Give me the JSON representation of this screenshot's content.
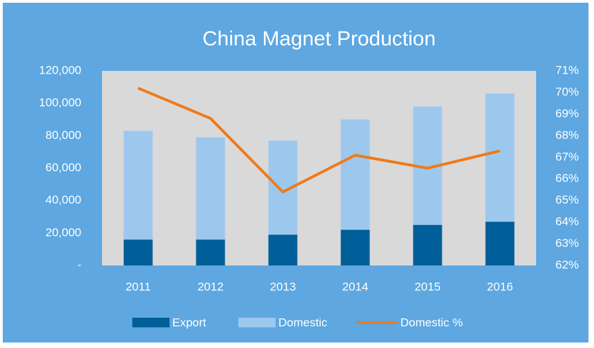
{
  "chart_data": {
    "type": "bar",
    "stacked": true,
    "title": "China Magnet Production",
    "categories": [
      "2011",
      "2012",
      "2013",
      "2014",
      "2015",
      "2016"
    ],
    "series": [
      {
        "name": "Export",
        "color": "#005e98",
        "values": [
          16000,
          16000,
          19000,
          22000,
          25000,
          27000
        ]
      },
      {
        "name": "Domestic",
        "color": "#9dc8ee",
        "values": [
          67000,
          63000,
          58000,
          68000,
          73000,
          79000
        ]
      },
      {
        "name": "Domestic %",
        "type": "line",
        "axis": "y2",
        "color": "#ee7a1a",
        "values": [
          70.2,
          68.8,
          65.4,
          67.1,
          66.5,
          67.3
        ]
      }
    ],
    "ylim": [
      0,
      120000
    ],
    "yticks": [
      {
        "value": 0,
        "label": "-"
      },
      {
        "value": 20000,
        "label": "20,000"
      },
      {
        "value": 40000,
        "label": "40,000"
      },
      {
        "value": 60000,
        "label": "60,000"
      },
      {
        "value": 80000,
        "label": "80,000"
      },
      {
        "value": 100000,
        "label": "100,000"
      },
      {
        "value": 120000,
        "label": "120,000"
      }
    ],
    "y2lim": [
      62,
      71
    ],
    "y2ticks": [
      {
        "value": 62,
        "label": "62%"
      },
      {
        "value": 63,
        "label": "63%"
      },
      {
        "value": 64,
        "label": "64%"
      },
      {
        "value": 65,
        "label": "65%"
      },
      {
        "value": 66,
        "label": "66%"
      },
      {
        "value": 67,
        "label": "67%"
      },
      {
        "value": 68,
        "label": "68%"
      },
      {
        "value": 69,
        "label": "69%"
      },
      {
        "value": 70,
        "label": "70%"
      },
      {
        "value": 71,
        "label": "71%"
      }
    ],
    "grid": false,
    "legend": "bottom"
  }
}
